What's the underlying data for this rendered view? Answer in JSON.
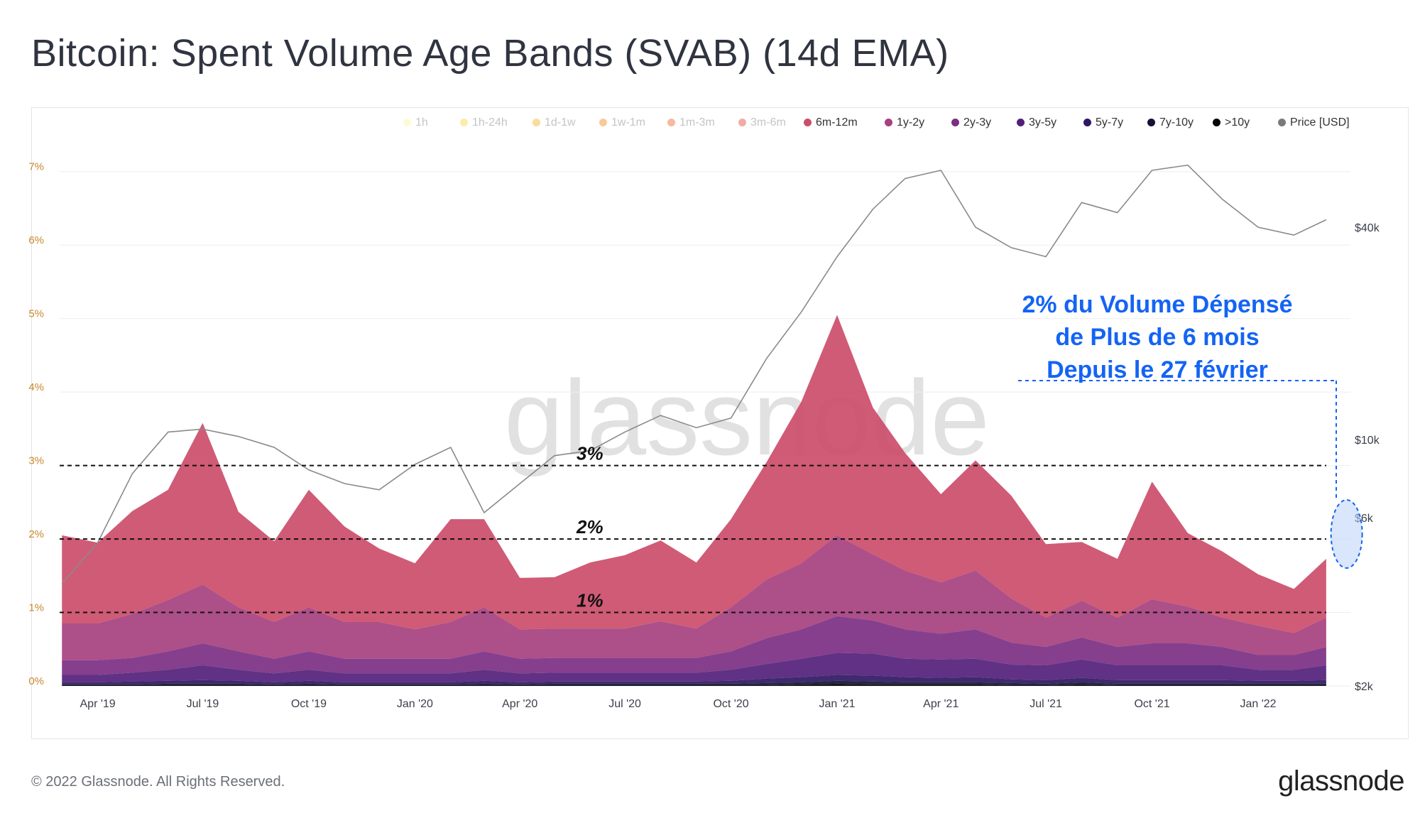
{
  "title": "Bitcoin: Spent Volume Age Bands (SVAB) (14d EMA)",
  "watermark": "glassnode",
  "footer": "© 2022 Glassnode. All Rights Reserved.",
  "brand": "glassnode",
  "annotation": {
    "lines": [
      "2% du Volume Dépensé",
      "de Plus de 6 mois",
      "Depuis le 27 février"
    ],
    "color": "#1464f4"
  },
  "chart_data": {
    "type": "area",
    "stacked": true,
    "title": "Bitcoin: Spent Volume Age Bands (SVAB) (14d EMA)",
    "x": [
      "2019-03-01",
      "2019-04-01",
      "2019-05-01",
      "2019-06-01",
      "2019-07-01",
      "2019-08-01",
      "2019-09-01",
      "2019-10-01",
      "2019-11-01",
      "2019-12-01",
      "2020-01-01",
      "2020-02-01",
      "2020-03-01",
      "2020-04-01",
      "2020-05-01",
      "2020-06-01",
      "2020-07-01",
      "2020-08-01",
      "2020-09-01",
      "2020-10-01",
      "2020-11-01",
      "2020-12-01",
      "2021-01-01",
      "2021-02-01",
      "2021-03-01",
      "2021-04-01",
      "2021-05-01",
      "2021-06-01",
      "2021-07-01",
      "2021-08-01",
      "2021-09-01",
      "2021-10-01",
      "2021-11-01",
      "2021-12-01",
      "2022-01-01",
      "2022-02-01",
      "2022-03-01"
    ],
    "x_ticks": [
      "Apr '19",
      "Jul '19",
      "Oct '19",
      "Jan '20",
      "Apr '20",
      "Jul '20",
      "Oct '20",
      "Jan '21",
      "Apr '21",
      "Jul '21",
      "Oct '21",
      "Jan '22"
    ],
    "left_axis": {
      "label": "",
      "unit": "%",
      "ylim": [
        0,
        7.5
      ],
      "ticks": [
        "0%",
        "1%",
        "2%",
        "3%",
        "4%",
        "5%",
        "6%",
        "7%"
      ]
    },
    "right_axis": {
      "label": "Price [USD]",
      "scale": "log",
      "ticks": [
        "$2k",
        "$6k",
        "$10k",
        "$40k"
      ]
    },
    "legend": [
      {
        "name": "1h",
        "color": "#fff4a3",
        "active": false
      },
      {
        "name": "1h-24h",
        "color": "#f5d44a",
        "active": false
      },
      {
        "name": "1d-1w",
        "color": "#f5b221",
        "active": false
      },
      {
        "name": "1w-1m",
        "color": "#f08a1c",
        "active": false
      },
      {
        "name": "1m-3m",
        "color": "#e8662a",
        "active": false
      },
      {
        "name": "3m-6m",
        "color": "#db4a3a",
        "active": false
      },
      {
        "name": "6m-12m",
        "color": "#cc4d6a",
        "active": true
      },
      {
        "name": "1y-2y",
        "color": "#a6407f",
        "active": true
      },
      {
        "name": "2y-3y",
        "color": "#7b2f83",
        "active": true
      },
      {
        "name": "3y-5y",
        "color": "#52207a",
        "active": true
      },
      {
        "name": "5y-7y",
        "color": "#2f1763",
        "active": true
      },
      {
        "name": "7y-10y",
        "color": "#141236",
        "active": true
      },
      {
        "name": ">10y",
        "color": "#050505",
        "active": true
      },
      {
        "name": "Price [USD]",
        "color": "#7a7a7a",
        "active": true
      }
    ],
    "series": [
      {
        "name": "6m-12m",
        "values": [
          1.2,
          1.1,
          1.4,
          1.5,
          2.2,
          1.3,
          1.1,
          1.6,
          1.3,
          1.0,
          0.9,
          1.4,
          1.2,
          0.7,
          0.7,
          0.9,
          1.0,
          1.1,
          0.9,
          1.2,
          1.6,
          2.2,
          3.0,
          2.0,
          1.6,
          1.2,
          1.5,
          1.4,
          1.0,
          0.8,
          0.8,
          1.6,
          1.0,
          0.9,
          0.7,
          0.6,
          0.8
        ]
      },
      {
        "name": "1y-2y",
        "values": [
          0.5,
          0.5,
          0.6,
          0.7,
          0.8,
          0.6,
          0.5,
          0.6,
          0.5,
          0.5,
          0.4,
          0.5,
          0.6,
          0.4,
          0.4,
          0.4,
          0.4,
          0.5,
          0.4,
          0.6,
          0.8,
          0.9,
          1.1,
          0.9,
          0.8,
          0.7,
          0.8,
          0.6,
          0.4,
          0.5,
          0.4,
          0.6,
          0.5,
          0.4,
          0.4,
          0.3,
          0.4
        ]
      },
      {
        "name": "2y-3y",
        "values": [
          0.2,
          0.2,
          0.2,
          0.25,
          0.3,
          0.25,
          0.2,
          0.25,
          0.2,
          0.2,
          0.2,
          0.2,
          0.25,
          0.2,
          0.2,
          0.2,
          0.2,
          0.2,
          0.2,
          0.25,
          0.35,
          0.4,
          0.5,
          0.45,
          0.4,
          0.35,
          0.4,
          0.3,
          0.25,
          0.3,
          0.25,
          0.3,
          0.3,
          0.25,
          0.2,
          0.2,
          0.25
        ]
      },
      {
        "name": "3y-5y",
        "values": [
          0.1,
          0.1,
          0.12,
          0.15,
          0.2,
          0.15,
          0.12,
          0.15,
          0.12,
          0.12,
          0.12,
          0.12,
          0.15,
          0.12,
          0.12,
          0.12,
          0.12,
          0.12,
          0.12,
          0.15,
          0.2,
          0.25,
          0.3,
          0.3,
          0.25,
          0.25,
          0.25,
          0.2,
          0.2,
          0.25,
          0.2,
          0.2,
          0.2,
          0.2,
          0.15,
          0.15,
          0.2
        ]
      },
      {
        "name": "5y-7y",
        "values": [
          0.03,
          0.03,
          0.04,
          0.04,
          0.05,
          0.04,
          0.03,
          0.04,
          0.03,
          0.03,
          0.03,
          0.03,
          0.04,
          0.03,
          0.03,
          0.03,
          0.03,
          0.03,
          0.03,
          0.04,
          0.06,
          0.07,
          0.08,
          0.08,
          0.07,
          0.06,
          0.07,
          0.05,
          0.05,
          0.06,
          0.05,
          0.05,
          0.05,
          0.05,
          0.04,
          0.04,
          0.05
        ]
      },
      {
        "name": "7y-10y",
        "values": [
          0.01,
          0.01,
          0.01,
          0.02,
          0.02,
          0.02,
          0.01,
          0.02,
          0.01,
          0.01,
          0.01,
          0.01,
          0.02,
          0.01,
          0.02,
          0.02,
          0.02,
          0.02,
          0.02,
          0.02,
          0.03,
          0.03,
          0.04,
          0.04,
          0.03,
          0.03,
          0.03,
          0.03,
          0.02,
          0.03,
          0.02,
          0.02,
          0.02,
          0.02,
          0.02,
          0.02,
          0.02
        ]
      },
      {
        "name": ">10y",
        "values": [
          0.01,
          0.01,
          0.01,
          0.01,
          0.01,
          0.01,
          0.01,
          0.01,
          0.01,
          0.01,
          0.01,
          0.01,
          0.01,
          0.01,
          0.01,
          0.01,
          0.01,
          0.01,
          0.01,
          0.01,
          0.01,
          0.02,
          0.03,
          0.02,
          0.02,
          0.02,
          0.02,
          0.01,
          0.01,
          0.02,
          0.01,
          0.01,
          0.01,
          0.01,
          0.01,
          0.01,
          0.01
        ]
      }
    ],
    "price_series": {
      "name": "Price [USD]",
      "values": [
        3900,
        5100,
        8000,
        10500,
        10700,
        10200,
        9500,
        8200,
        7500,
        7200,
        8500,
        9500,
        6200,
        7500,
        9000,
        9300,
        10500,
        11700,
        10800,
        11500,
        17000,
        23000,
        33000,
        45000,
        55000,
        58000,
        40000,
        35000,
        33000,
        47000,
        44000,
        58000,
        60000,
        48000,
        40000,
        38000,
        42000
      ]
    },
    "reference_lines": [
      {
        "label": "3%",
        "value": 3
      },
      {
        "label": "2%",
        "value": 2
      },
      {
        "label": "1%",
        "value": 1
      }
    ],
    "highlight": {
      "x": "2022-02-27",
      "label": "2% du Volume Dépensé de Plus de 6 mois Depuis le 27 février"
    }
  }
}
